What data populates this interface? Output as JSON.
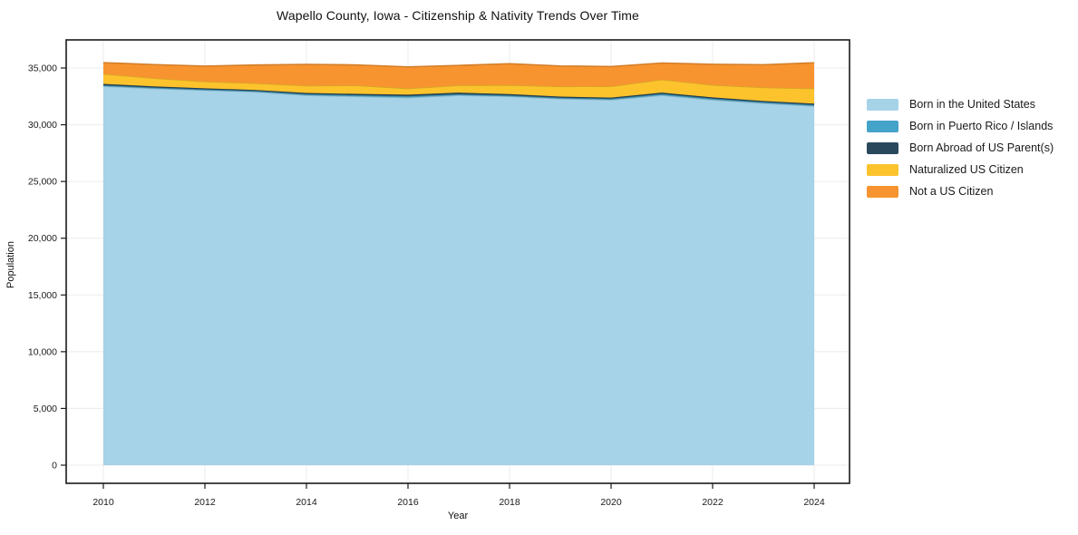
{
  "title": "Wapello County, Iowa - Citizenship & Nativity Trends Over Time",
  "chart_data": {
    "type": "area",
    "stacked": true,
    "title": "Wapello County, Iowa - Citizenship & Nativity Trends Over Time",
    "xlabel": "Year",
    "ylabel": "Population",
    "x": [
      2010,
      2011,
      2012,
      2013,
      2014,
      2015,
      2016,
      2017,
      2018,
      2019,
      2020,
      2021,
      2022,
      2023,
      2024
    ],
    "x_ticks": [
      2010,
      2012,
      2014,
      2016,
      2018,
      2020,
      2022,
      2024
    ],
    "y_ticks": [
      0,
      5000,
      10000,
      15000,
      20000,
      25000,
      30000,
      35000
    ],
    "xlim": [
      2009.3,
      2024.7
    ],
    "ylim": [
      0,
      35000
    ],
    "grid": true,
    "legend_position": "right",
    "series": [
      {
        "name": "Born in the United States",
        "color": "#a6d3e8",
        "values": [
          33400,
          33200,
          33050,
          32900,
          32600,
          32500,
          32400,
          32600,
          32500,
          32300,
          32200,
          32600,
          32200,
          31900,
          31650
        ]
      },
      {
        "name": "Born in Puerto Rico / Islands",
        "color": "#44a3c8",
        "values": [
          80,
          70,
          60,
          75,
          90,
          100,
          120,
          90,
          80,
          70,
          90,
          110,
          100,
          90,
          100
        ]
      },
      {
        "name": "Born Abroad of US Parent(s)",
        "color": "#29485c",
        "values": [
          120,
          110,
          100,
          90,
          110,
          120,
          130,
          140,
          120,
          110,
          100,
          120,
          110,
          100,
          110
        ]
      },
      {
        "name": "Naturalized US Citizen",
        "color": "#fcc32d",
        "values": [
          880,
          720,
          600,
          600,
          650,
          750,
          550,
          650,
          800,
          900,
          1000,
          1150,
          1100,
          1200,
          1330
        ]
      },
      {
        "name": "Not a US Citizen",
        "color": "#f89430",
        "values": [
          990,
          1200,
          1360,
          1600,
          1870,
          1800,
          1900,
          1750,
          1880,
          1800,
          1740,
          1460,
          1820,
          2000,
          2270
        ]
      }
    ]
  }
}
